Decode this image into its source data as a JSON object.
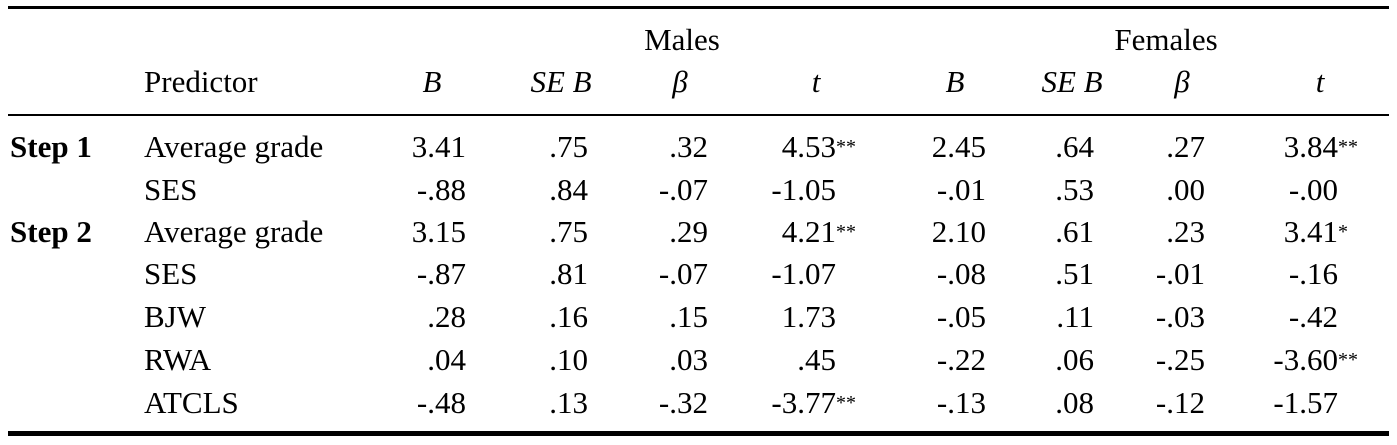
{
  "table": {
    "group_headers": [
      "Males",
      "Females"
    ],
    "column_headers": [
      "Predictor",
      "B",
      "SE B",
      "β",
      "t",
      "B",
      "SE B",
      "β",
      "t"
    ],
    "rows": [
      {
        "step": "Step 1",
        "predictor": "Average grade",
        "m_b": "3.41",
        "m_seb": ".75",
        "m_beta": ".32",
        "m_t": "4.53",
        "m_t_sig": "**",
        "f_b": "2.45",
        "f_seb": ".64",
        "f_beta": ".27",
        "f_t": "3.84",
        "f_t_sig": "**"
      },
      {
        "step": "",
        "predictor": "SES",
        "m_b": "-.88",
        "m_seb": ".84",
        "m_beta": "-.07",
        "m_t": "-1.05",
        "m_t_sig": "",
        "f_b": "-.01",
        "f_seb": ".53",
        "f_beta": ".00",
        "f_t": "-.00",
        "f_t_sig": ""
      },
      {
        "step": "Step 2",
        "predictor": "Average grade",
        "m_b": "3.15",
        "m_seb": ".75",
        "m_beta": ".29",
        "m_t": "4.21",
        "m_t_sig": "**",
        "f_b": "2.10",
        "f_seb": ".61",
        "f_beta": ".23",
        "f_t": "3.41",
        "f_t_sig": "*"
      },
      {
        "step": "",
        "predictor": "SES",
        "m_b": "-.87",
        "m_seb": ".81",
        "m_beta": "-.07",
        "m_t": "-1.07",
        "m_t_sig": "",
        "f_b": "-.08",
        "f_seb": ".51",
        "f_beta": "-.01",
        "f_t": "-.16",
        "f_t_sig": ""
      },
      {
        "step": "",
        "predictor": "BJW",
        "m_b": ".28",
        "m_seb": ".16",
        "m_beta": ".15",
        "m_t": "1.73",
        "m_t_sig": "",
        "f_b": "-.05",
        "f_seb": ".11",
        "f_beta": "-.03",
        "f_t": "-.42",
        "f_t_sig": ""
      },
      {
        "step": "",
        "predictor": "RWA",
        "m_b": ".04",
        "m_seb": ".10",
        "m_beta": ".03",
        "m_t": ".45",
        "m_t_sig": "",
        "f_b": "-.22",
        "f_seb": ".06",
        "f_beta": "-.25",
        "f_t": "-3.60",
        "f_t_sig": "**"
      },
      {
        "step": "",
        "predictor": "ATCLS",
        "m_b": "-.48",
        "m_seb": ".13",
        "m_beta": "-.32",
        "m_t": "-3.77",
        "m_t_sig": "**",
        "f_b": "-.13",
        "f_seb": ".08",
        "f_beta": "-.12",
        "f_t": "-1.57",
        "f_t_sig": ""
      }
    ]
  }
}
